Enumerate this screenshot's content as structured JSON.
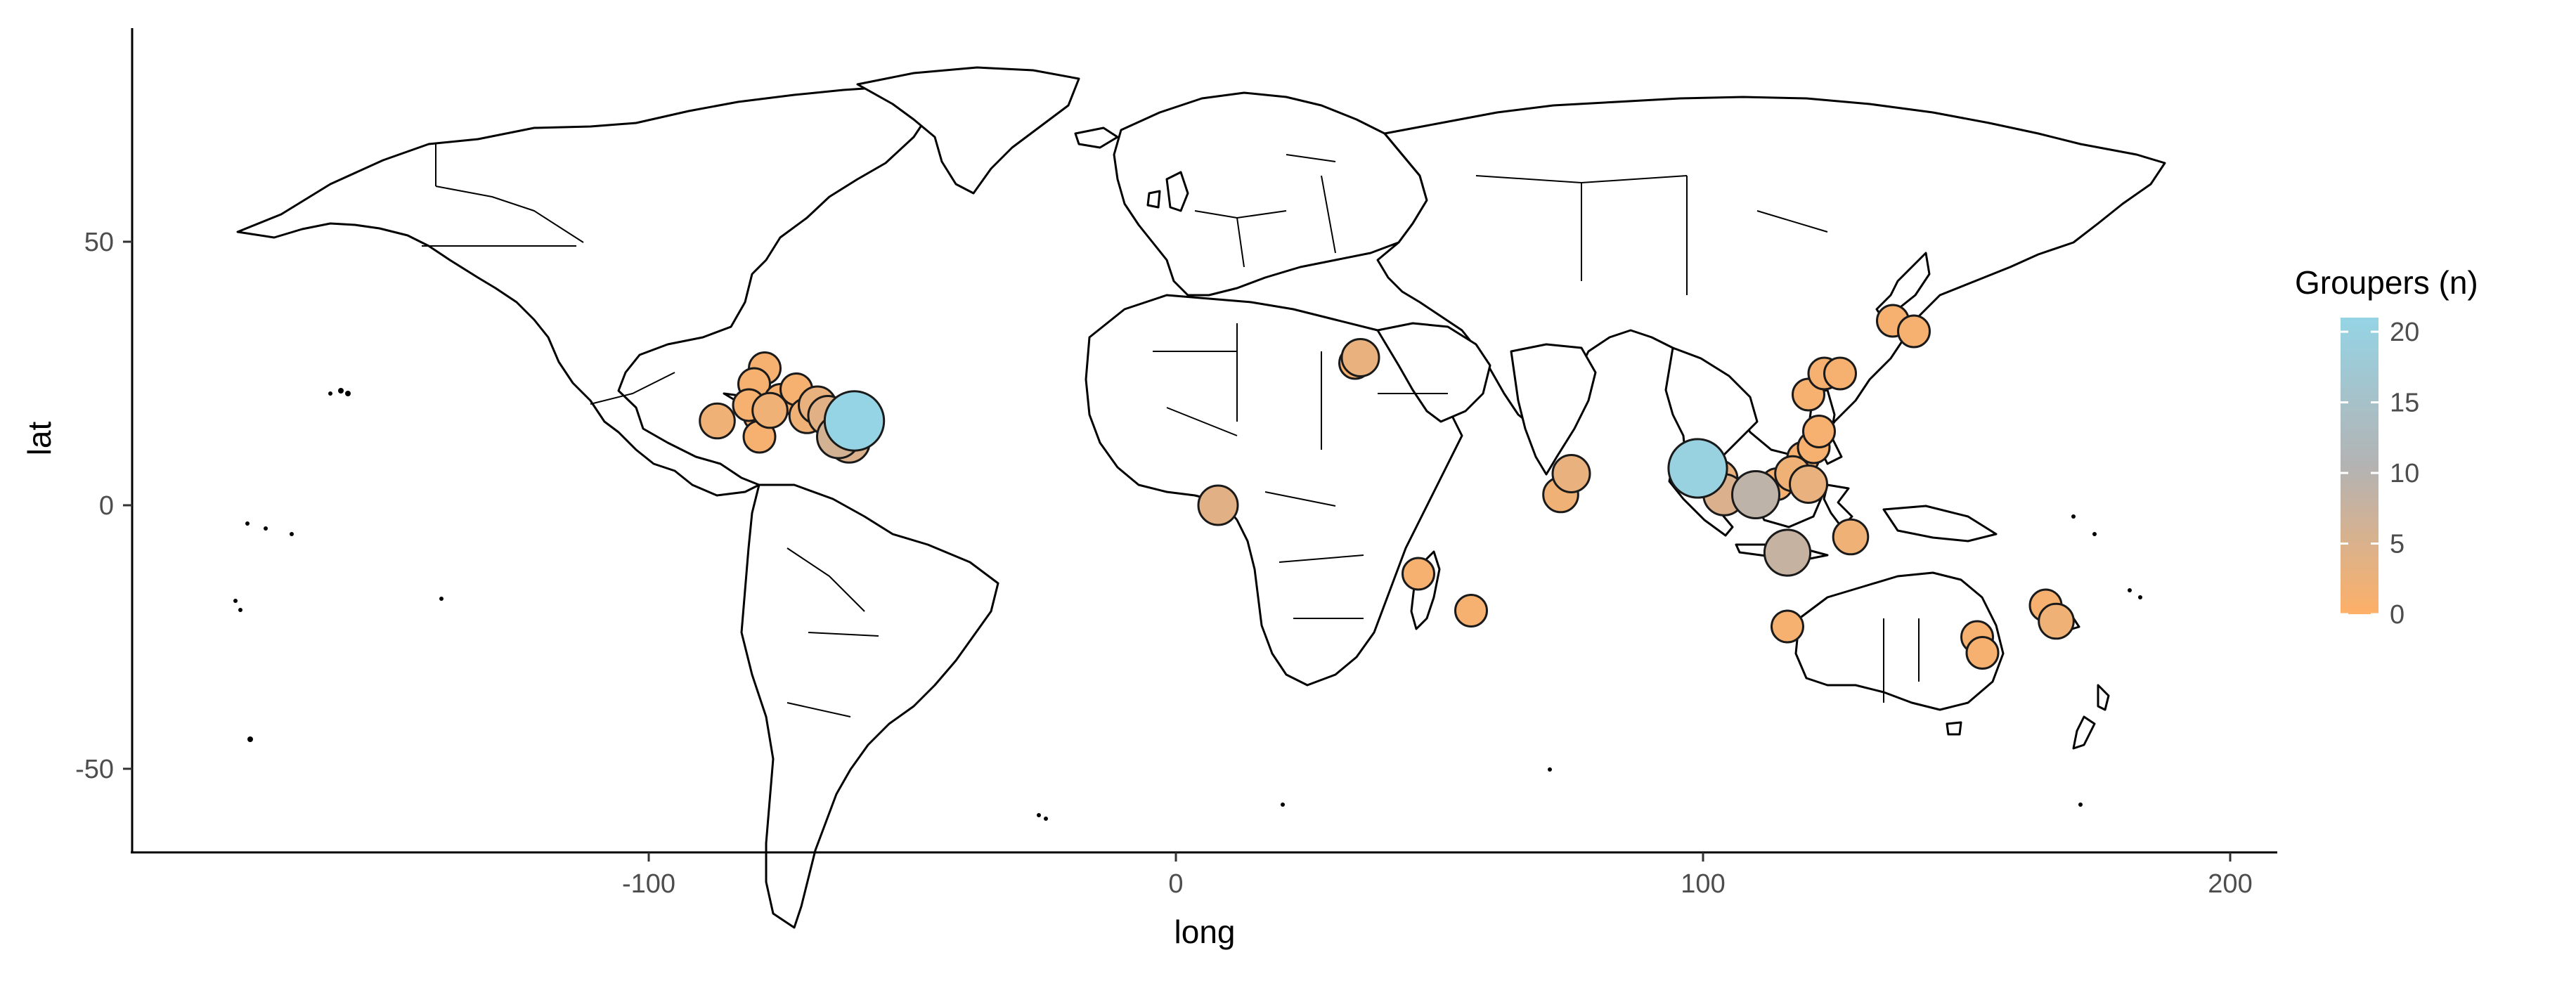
{
  "chart_data": {
    "type": "scatter",
    "subtype": "bubble-map",
    "title": "",
    "xlabel": "long",
    "ylabel": "lat",
    "xlim": [
      -198,
      208
    ],
    "ylim": [
      -65,
      90
    ],
    "x_ticks": [
      -100,
      0,
      100,
      200
    ],
    "x_tick_labels": [
      "-100",
      "0",
      "100",
      "200"
    ],
    "y_ticks": [
      -50,
      0,
      50
    ],
    "y_tick_labels": [
      "-50",
      "0",
      "50"
    ],
    "grid": false,
    "legend": {
      "title": "Groupers (n)",
      "position": "right",
      "scale": "continuous",
      "range": [
        0,
        21
      ],
      "breaks": [
        0,
        5,
        10,
        15,
        20
      ],
      "break_labels": [
        "0",
        "5",
        "10",
        "15",
        "20"
      ],
      "color_low": "#FDB068",
      "color_mid": "#B3B3B3",
      "color_high": "#95D4E5"
    },
    "series": [
      {
        "points": [
          {
            "long": -78,
            "lat": 26,
            "n": 1
          },
          {
            "long": -80,
            "lat": 23,
            "n": 1
          },
          {
            "long": -77,
            "lat": 18,
            "n": 2
          },
          {
            "long": -75,
            "lat": 20,
            "n": 1
          },
          {
            "long": -72,
            "lat": 22,
            "n": 1
          },
          {
            "long": -68,
            "lat": 19,
            "n": 3
          },
          {
            "long": -66,
            "lat": 17,
            "n": 4
          },
          {
            "long": -61,
            "lat": 16,
            "n": 21
          },
          {
            "long": -62,
            "lat": 12,
            "n": 5
          },
          {
            "long": -64,
            "lat": 13,
            "n": 6
          },
          {
            "long": -79,
            "lat": 17,
            "n": 1
          },
          {
            "long": -81,
            "lat": 19,
            "n": 1
          },
          {
            "long": -87,
            "lat": 16,
            "n": 2
          },
          {
            "long": -79,
            "lat": 13,
            "n": 1
          },
          {
            "long": -70,
            "lat": 17,
            "n": 2
          },
          {
            "long": 35,
            "lat": 28,
            "n": 3
          },
          {
            "long": 34,
            "lat": 27,
            "n": 1
          },
          {
            "long": 8,
            "lat": 0,
            "n": 4
          },
          {
            "long": 46,
            "lat": -13,
            "n": 1
          },
          {
            "long": 56,
            "lat": -20,
            "n": 1
          },
          {
            "long": 73,
            "lat": 2,
            "n": 2
          },
          {
            "long": 75,
            "lat": 6,
            "n": 3
          },
          {
            "long": 99,
            "lat": 7,
            "n": 20
          },
          {
            "long": 103,
            "lat": 5,
            "n": 3
          },
          {
            "long": 104,
            "lat": 2,
            "n": 5
          },
          {
            "long": 110,
            "lat": 2,
            "n": 9
          },
          {
            "long": 116,
            "lat": -9,
            "n": 8
          },
          {
            "long": 114,
            "lat": 4,
            "n": 1
          },
          {
            "long": 117,
            "lat": 6,
            "n": 2
          },
          {
            "long": 119,
            "lat": 9,
            "n": 1
          },
          {
            "long": 121,
            "lat": 11,
            "n": 1
          },
          {
            "long": 122,
            "lat": 14,
            "n": 1
          },
          {
            "long": 120,
            "lat": 4,
            "n": 3
          },
          {
            "long": 120,
            "lat": 21,
            "n": 1
          },
          {
            "long": 123,
            "lat": 25,
            "n": 1
          },
          {
            "long": 126,
            "lat": 25,
            "n": 1
          },
          {
            "long": 128,
            "lat": -6,
            "n": 2
          },
          {
            "long": 116,
            "lat": -23,
            "n": 1
          },
          {
            "long": 136,
            "lat": 35,
            "n": 1
          },
          {
            "long": 140,
            "lat": 33,
            "n": 1
          },
          {
            "long": 152,
            "lat": -25,
            "n": 1
          },
          {
            "long": 153,
            "lat": -28,
            "n": 1
          },
          {
            "long": 165,
            "lat": -19,
            "n": 1
          },
          {
            "long": 167,
            "lat": -22,
            "n": 2
          }
        ]
      }
    ]
  }
}
